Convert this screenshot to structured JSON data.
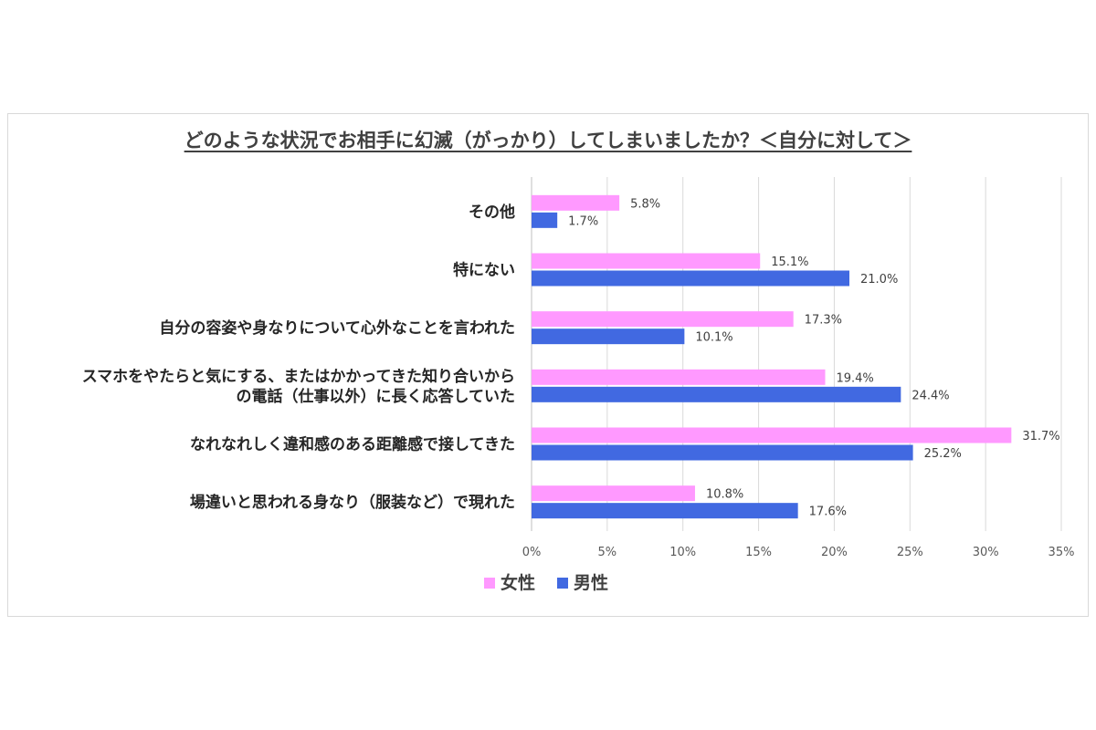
{
  "chart_data": {
    "type": "bar",
    "orientation": "horizontal",
    "title": "どのような状況でお相手に幻滅（がっかり）してしまいましたか？＜自分に対して＞",
    "categories": [
      [
        "その他"
      ],
      [
        "特にない"
      ],
      [
        "自分の容姿や身なりについて心外なことを言われた"
      ],
      [
        "スマホをやたらと気にする、またはかかってきた知り合いから",
        "の電話（仕事以外）に長く応答していた"
      ],
      [
        "なれなれしく違和感のある距離感で接してきた"
      ],
      [
        "場違いと思われる身なり（服装など）で現れた"
      ]
    ],
    "series": [
      {
        "name": "女性",
        "color": "#ff99ff",
        "values": [
          5.8,
          15.1,
          17.3,
          19.4,
          31.7,
          10.8
        ]
      },
      {
        "name": "男性",
        "color": "#4169e1",
        "values": [
          1.7,
          21.0,
          10.1,
          24.4,
          25.2,
          17.6
        ]
      }
    ],
    "value_suffix": "%",
    "xlim": [
      0,
      35
    ],
    "xticks": [
      0,
      5,
      10,
      15,
      20,
      25,
      30,
      35
    ],
    "tick_labels": [
      "0%",
      "5%",
      "10%",
      "15%",
      "20%",
      "25%",
      "30%",
      "35%"
    ],
    "grid": true,
    "gridline_color": "#d9d9d9",
    "legend_position": "bottom"
  }
}
